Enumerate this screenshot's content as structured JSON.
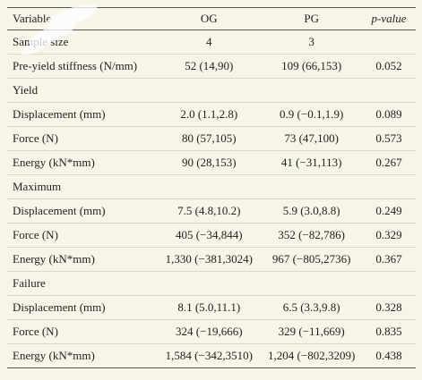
{
  "header": {
    "variable": "Variable",
    "og": "OG",
    "pg": "PG",
    "pvalue": "p-value"
  },
  "rows": [
    {
      "type": "data",
      "label": "Sample size",
      "og": "4",
      "pg": "3",
      "p": ""
    },
    {
      "type": "data",
      "label": "Pre-yield stiffness (N/mm)",
      "og": "52 (14,90)",
      "pg": "109 (66,153)",
      "p": "0.052"
    },
    {
      "type": "section",
      "label": "Yield"
    },
    {
      "type": "data",
      "label": "Displacement (mm)",
      "og": "2.0 (1.1,2.8)",
      "pg": "0.9 (−0.1,1.9)",
      "p": "0.089"
    },
    {
      "type": "data",
      "label": "Force (N)",
      "og": "80 (57,105)",
      "pg": "73 (47,100)",
      "p": "0.573"
    },
    {
      "type": "data",
      "label": "Energy (kN*mm)",
      "og": "90 (28,153)",
      "pg": "41 (−31,113)",
      "p": "0.267"
    },
    {
      "type": "section",
      "label": "Maximum"
    },
    {
      "type": "data",
      "label": "Displacement (mm)",
      "og": "7.5 (4.8,10.2)",
      "pg": "5.9 (3.0,8.8)",
      "p": "0.249"
    },
    {
      "type": "data",
      "label": "Force (N)",
      "og": "405 (−34,844)",
      "pg": "352 (−82,786)",
      "p": "0.329"
    },
    {
      "type": "data",
      "label": "Energy (kN*mm)",
      "og": "1,330 (−381,3024)",
      "pg": "967 (−805,2736)",
      "p": "0.367"
    },
    {
      "type": "section",
      "label": "Failure"
    },
    {
      "type": "data",
      "label": "Displacement (mm)",
      "og": "8.1 (5.0,11.1)",
      "pg": "6.5 (3.3,9.8)",
      "p": "0.328"
    },
    {
      "type": "data",
      "label": "Force (N)",
      "og": "324 (−19,666)",
      "pg": "329 (−11,669)",
      "p": "0.835"
    },
    {
      "type": "data",
      "label": "Energy (kN*mm)",
      "og": "1,584 (−342,3510)",
      "pg": "1,204 (−802,3209)",
      "p": "0.438"
    }
  ]
}
